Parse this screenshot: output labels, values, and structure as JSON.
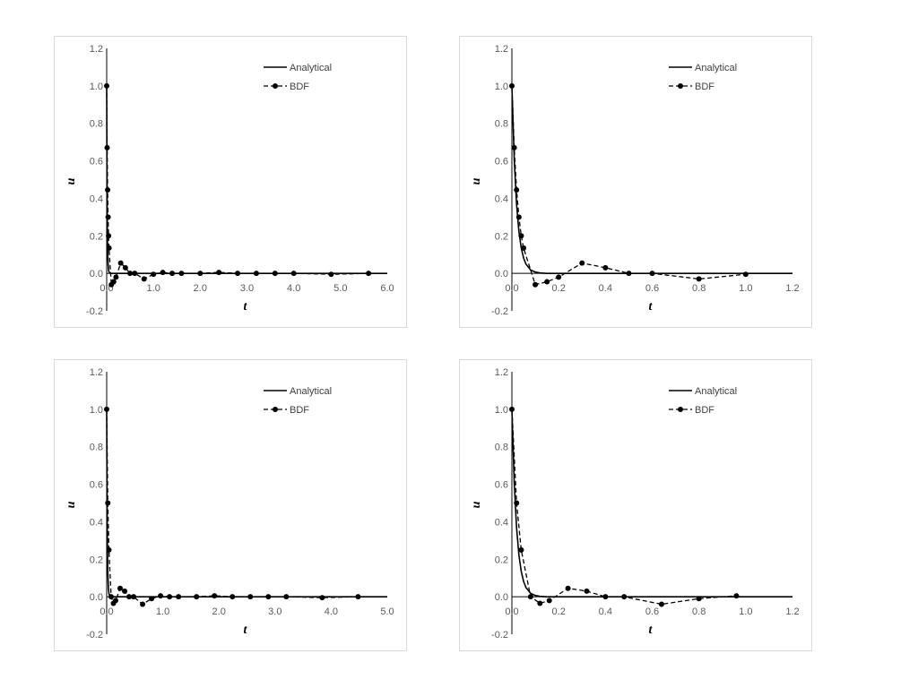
{
  "colors": {
    "axis": "#000000",
    "series": "#000000",
    "tick_text": "#595959",
    "panel_border": "#d9d9d9"
  },
  "chart_data": [
    {
      "type": "line",
      "xlabel": "t",
      "ylabel": "u",
      "xlim": [
        0,
        6.0
      ],
      "ylim": [
        -0.2,
        1.2
      ],
      "xticks": [
        "0.0",
        "1.0",
        "2.0",
        "3.0",
        "4.0",
        "5.0",
        "6.0"
      ],
      "xtick_values": [
        0,
        1,
        2,
        3,
        4,
        5,
        6
      ],
      "yticks": [
        "-0.2",
        "0.0",
        "0.2",
        "0.4",
        "0.6",
        "0.8",
        "1.0",
        "1.2"
      ],
      "ytick_values": [
        -0.2,
        0,
        0.2,
        0.4,
        0.6,
        0.8,
        1.0,
        1.2
      ],
      "legend": "top-right",
      "series": [
        {
          "name": "Analytical",
          "style": "solid",
          "decay_rate": 100,
          "x": [
            0,
            0.005,
            0.01,
            0.015,
            0.02,
            0.03,
            0.04,
            0.05,
            0.07,
            0.1,
            0.2,
            6.0
          ],
          "y": [
            1,
            0.607,
            0.368,
            0.223,
            0.135,
            0.05,
            0.018,
            0.007,
            0.001,
            0,
            0,
            0
          ]
        },
        {
          "name": "BDF",
          "style": "dashed-markers",
          "x": [
            0,
            0.01,
            0.02,
            0.03,
            0.04,
            0.05,
            0.1,
            0.15,
            0.2,
            0.3,
            0.4,
            0.5,
            0.6,
            0.8,
            1.0,
            1.2,
            1.4,
            1.6,
            2.0,
            2.4,
            2.8,
            3.2,
            3.6,
            4.0,
            4.8,
            5.6
          ],
          "y": [
            1.0,
            0.67,
            0.445,
            0.3,
            0.2,
            0.135,
            -0.06,
            -0.045,
            -0.02,
            0.055,
            0.03,
            0.0,
            0.0,
            -0.03,
            -0.005,
            0.005,
            0.0,
            0.0,
            0.0,
            0.005,
            0.0,
            0.0,
            0.0,
            0.0,
            -0.005,
            0.0
          ]
        }
      ]
    },
    {
      "type": "line",
      "xlabel": "t",
      "ylabel": "u",
      "xlim": [
        0,
        1.2
      ],
      "ylim": [
        -0.2,
        1.2
      ],
      "xticks": [
        "0.0",
        "0.2",
        "0.4",
        "0.6",
        "0.8",
        "1.0",
        "1.2"
      ],
      "xtick_values": [
        0,
        0.2,
        0.4,
        0.6,
        0.8,
        1.0,
        1.2
      ],
      "yticks": [
        "-0.2",
        "0.0",
        "0.2",
        "0.4",
        "0.6",
        "0.8",
        "1.0",
        "1.2"
      ],
      "ytick_values": [
        -0.2,
        0,
        0.2,
        0.4,
        0.6,
        0.8,
        1.0,
        1.2
      ],
      "legend": "top-right",
      "series": [
        {
          "name": "Analytical",
          "style": "solid",
          "x": [
            0,
            0.01,
            0.02,
            0.03,
            0.04,
            0.05,
            0.06,
            0.08,
            0.1,
            0.12,
            0.15,
            1.2
          ],
          "y": [
            1,
            0.607,
            0.368,
            0.223,
            0.135,
            0.082,
            0.05,
            0.018,
            0.007,
            0.002,
            0,
            0
          ]
        },
        {
          "name": "BDF",
          "style": "dashed-markers",
          "x": [
            0,
            0.01,
            0.02,
            0.03,
            0.04,
            0.05,
            0.1,
            0.15,
            0.2,
            0.3,
            0.4,
            0.5,
            0.6,
            0.8,
            1.0
          ],
          "y": [
            1.0,
            0.67,
            0.445,
            0.3,
            0.2,
            0.135,
            -0.06,
            -0.045,
            -0.02,
            0.055,
            0.03,
            0.0,
            0.0,
            -0.03,
            -0.005
          ]
        }
      ]
    },
    {
      "type": "line",
      "xlabel": "t",
      "ylabel": "u",
      "xlim": [
        0,
        5.0
      ],
      "ylim": [
        -0.2,
        1.2
      ],
      "xticks": [
        "0.0",
        "1.0",
        "2.0",
        "3.0",
        "4.0",
        "5.0"
      ],
      "xtick_values": [
        0,
        1,
        2,
        3,
        4,
        5
      ],
      "yticks": [
        "-0.2",
        "0.0",
        "0.2",
        "0.4",
        "0.6",
        "0.8",
        "1.0",
        "1.2"
      ],
      "ytick_values": [
        -0.2,
        0,
        0.2,
        0.4,
        0.6,
        0.8,
        1.0,
        1.2
      ],
      "legend": "top-right",
      "series": [
        {
          "name": "Analytical",
          "style": "solid",
          "x": [
            0,
            0.005,
            0.01,
            0.015,
            0.02,
            0.03,
            0.04,
            0.05,
            0.07,
            0.1,
            0.2,
            5.0
          ],
          "y": [
            1,
            0.607,
            0.368,
            0.223,
            0.135,
            0.05,
            0.018,
            0.007,
            0.001,
            0,
            0,
            0
          ]
        },
        {
          "name": "BDF",
          "style": "dashed-markers",
          "x": [
            0,
            0.02,
            0.04,
            0.08,
            0.12,
            0.16,
            0.24,
            0.32,
            0.4,
            0.48,
            0.64,
            0.8,
            0.96,
            1.12,
            1.28,
            1.6,
            1.92,
            2.24,
            2.56,
            2.88,
            3.2,
            3.84,
            4.48
          ],
          "y": [
            1.0,
            0.5,
            0.25,
            0.0,
            -0.035,
            -0.02,
            0.045,
            0.03,
            0.0,
            0.0,
            -0.04,
            -0.01,
            0.005,
            0.0,
            0.0,
            0.0,
            0.005,
            0.0,
            0.0,
            0.0,
            0.0,
            -0.005,
            0.0
          ]
        }
      ]
    },
    {
      "type": "line",
      "xlabel": "t",
      "ylabel": "u",
      "xlim": [
        0,
        1.2
      ],
      "ylim": [
        -0.2,
        1.2
      ],
      "xticks": [
        "0.0",
        "0.2",
        "0.4",
        "0.6",
        "0.8",
        "1.0",
        "1.2"
      ],
      "xtick_values": [
        0,
        0.2,
        0.4,
        0.6,
        0.8,
        1.0,
        1.2
      ],
      "yticks": [
        "-0.2",
        "0.0",
        "0.2",
        "0.4",
        "0.6",
        "0.8",
        "1.0",
        "1.2"
      ],
      "ytick_values": [
        -0.2,
        0,
        0.2,
        0.4,
        0.6,
        0.8,
        1.0,
        1.2
      ],
      "legend": "top-right",
      "series": [
        {
          "name": "Analytical",
          "style": "solid",
          "x": [
            0,
            0.01,
            0.02,
            0.03,
            0.04,
            0.05,
            0.06,
            0.08,
            0.1,
            0.12,
            0.15,
            1.2
          ],
          "y": [
            1,
            0.607,
            0.368,
            0.223,
            0.135,
            0.082,
            0.05,
            0.018,
            0.007,
            0.002,
            0,
            0
          ]
        },
        {
          "name": "BDF",
          "style": "dashed-markers",
          "x": [
            0,
            0.02,
            0.04,
            0.08,
            0.12,
            0.16,
            0.24,
            0.32,
            0.4,
            0.48,
            0.64,
            0.8,
            0.96
          ],
          "y": [
            1.0,
            0.5,
            0.25,
            0.0,
            -0.035,
            -0.02,
            0.045,
            0.03,
            0.0,
            0.0,
            -0.04,
            -0.01,
            0.005
          ]
        }
      ]
    }
  ]
}
